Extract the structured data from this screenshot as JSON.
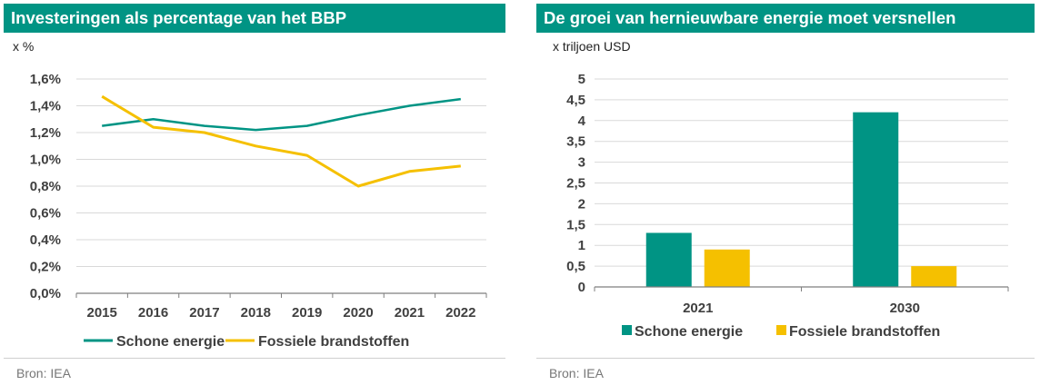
{
  "colors": {
    "header_bg": "#009484",
    "schone": "#009484",
    "fossiel": "#F5C000",
    "grid": "#d9d9d9",
    "axis": "#7f7f7f"
  },
  "left": {
    "title": "Investeringen als percentage van het BBP",
    "unit": "x %",
    "source": "Bron: IEA"
  },
  "right": {
    "title": "De groei van hernieuwbare energie moet versnellen",
    "unit": "x triljoen USD",
    "source": "Bron: IEA"
  },
  "chart_data": [
    {
      "type": "line",
      "title": "Investeringen als percentage van het BBP",
      "ylabel": "x %",
      "xlabel": "",
      "x": [
        "2015",
        "2016",
        "2017",
        "2018",
        "2019",
        "2020",
        "2021",
        "2022"
      ],
      "ylim": [
        0,
        1.6
      ],
      "yticks": [
        0,
        0.2,
        0.4,
        0.6,
        0.8,
        1.0,
        1.2,
        1.4,
        1.6
      ],
      "ytick_labels": [
        "0,0%",
        "0,2%",
        "0,4%",
        "0,6%",
        "0,8%",
        "1,0%",
        "1,2%",
        "1,4%",
        "1,6%"
      ],
      "grid": true,
      "legend_position": "bottom",
      "series": [
        {
          "name": "Schone energie",
          "color": "#009484",
          "values": [
            1.25,
            1.3,
            1.25,
            1.22,
            1.25,
            1.33,
            1.4,
            1.45
          ]
        },
        {
          "name": "Fossiele brandstoffen",
          "color": "#F5C000",
          "values": [
            1.47,
            1.24,
            1.2,
            1.1,
            1.03,
            0.8,
            0.91,
            0.95
          ]
        }
      ]
    },
    {
      "type": "bar",
      "title": "De groei van hernieuwbare energie moet versnellen",
      "ylabel": "x triljoen USD",
      "xlabel": "",
      "categories": [
        "2021",
        "2030"
      ],
      "ylim": [
        0,
        5
      ],
      "yticks": [
        0,
        0.5,
        1,
        1.5,
        2,
        2.5,
        3,
        3.5,
        4,
        4.5,
        5
      ],
      "ytick_labels": [
        "0",
        "0,5",
        "1",
        "1,5",
        "2",
        "2,5",
        "3",
        "3,5",
        "4",
        "4,5",
        "5"
      ],
      "grid": true,
      "legend_position": "bottom",
      "series": [
        {
          "name": "Schone energie",
          "color": "#009484",
          "values": [
            1.3,
            4.2
          ]
        },
        {
          "name": "Fossiele brandstoffen",
          "color": "#F5C000",
          "values": [
            0.9,
            0.5
          ]
        }
      ]
    }
  ]
}
